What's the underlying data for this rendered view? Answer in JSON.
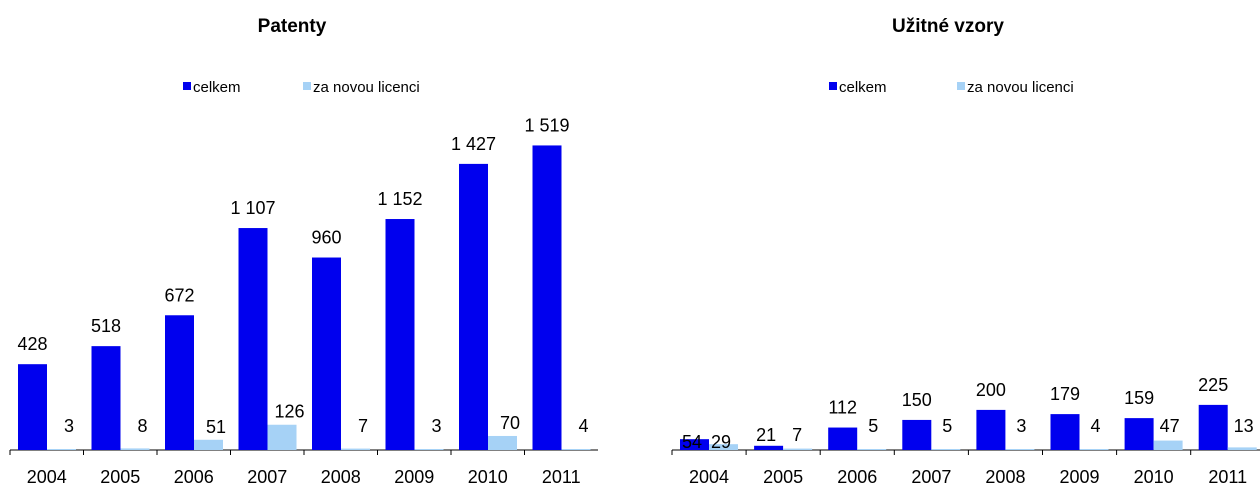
{
  "colors": {
    "celkem": "#0000ee",
    "za_novou_licenci": "#a6d2f6"
  },
  "chart_data": [
    {
      "type": "bar",
      "title": "Patenty",
      "categories": [
        "2004",
        "2005",
        "2006",
        "2007",
        "2008",
        "2009",
        "2010",
        "2011"
      ],
      "category_labels": [
        "2004",
        "2005",
        "2006",
        "2007",
        "2008",
        "2009",
        "2010",
        "2011"
      ],
      "series": [
        {
          "name": "celkem",
          "values": [
            428,
            518,
            672,
            1107,
            960,
            1152,
            1427,
            1519
          ],
          "labels": [
            "428",
            "518",
            "672",
            "1 107",
            "960",
            "1 152",
            "1 427",
            "1 519"
          ]
        },
        {
          "name": "za novou licenci",
          "values": [
            3,
            8,
            51,
            126,
            7,
            3,
            70,
            4
          ],
          "labels": [
            "3",
            "8",
            "51",
            "126",
            "7",
            "3",
            "70",
            "4"
          ]
        }
      ],
      "legend": "top",
      "ylim": [
        0,
        1550
      ],
      "grid": false
    },
    {
      "type": "bar",
      "title": "Užitné vzory",
      "categories": [
        "2004",
        "2005",
        "2006",
        "2007",
        "2008",
        "2009",
        "2010",
        "2011"
      ],
      "category_labels": [
        "2004",
        "2005",
        "2006",
        "2007",
        "2008",
        "2009",
        "2010",
        "2011"
      ],
      "series": [
        {
          "name": "celkem",
          "values": [
            54,
            21,
            112,
            150,
            200,
            179,
            159,
            225
          ],
          "labels": [
            "54",
            "21",
            "112",
            "150",
            "200",
            "179",
            "159",
            "225"
          ]
        },
        {
          "name": "za novou licenci",
          "values": [
            29,
            7,
            5,
            5,
            3,
            4,
            47,
            13
          ],
          "labels": [
            "29",
            "7",
            "5",
            "5",
            "3",
            "4",
            "47",
            "13"
          ]
        }
      ],
      "legend": "top",
      "ylim": [
        0,
        1550
      ],
      "grid": false
    }
  ]
}
